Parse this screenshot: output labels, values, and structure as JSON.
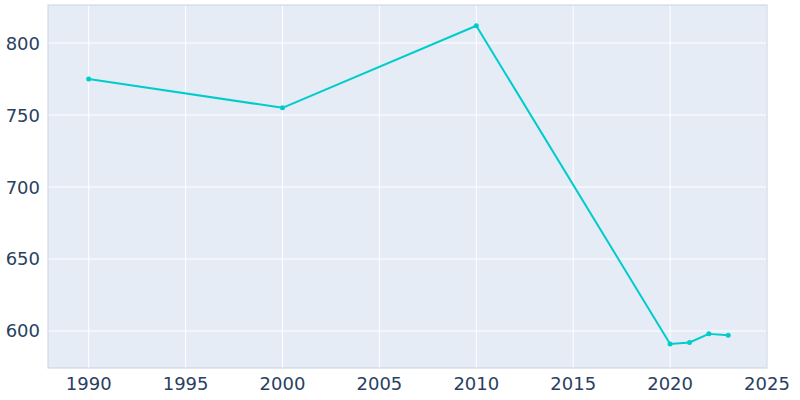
{
  "chart_data": {
    "type": "line",
    "x": [
      1990,
      2000,
      2010,
      2020,
      2021,
      2022,
      2023
    ],
    "values": [
      775,
      755,
      812,
      591,
      592,
      598,
      597
    ],
    "color": "#00cccc",
    "marker": "circle",
    "xlim": [
      1987.9,
      2025
    ],
    "xticks": [
      1990,
      1995,
      2000,
      2005,
      2010,
      2015,
      2020,
      2025
    ],
    "ylim": [
      574.3,
      826.4
    ],
    "yticks": [
      600,
      650,
      700,
      750,
      800
    ],
    "grid": true
  }
}
